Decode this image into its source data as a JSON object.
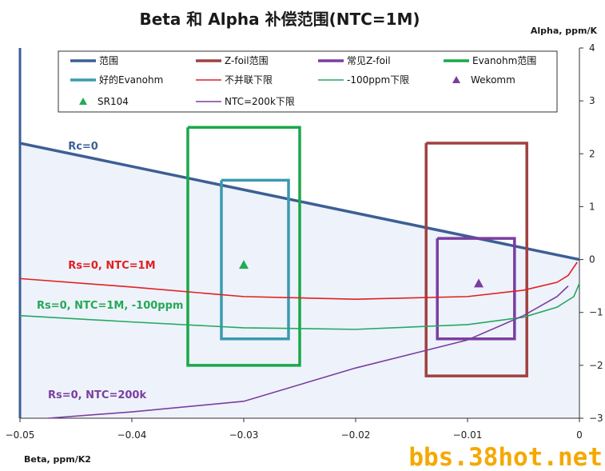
{
  "chart_data": {
    "type": "line",
    "title": "Beta 和 Alpha 补偿范围(NTC=1M)",
    "xlabel": "Beta, ppm/K2",
    "ylabel": "Alpha, ppm/K",
    "xlim": [
      -0.05,
      0
    ],
    "ylim": [
      -3,
      4
    ],
    "x_ticks": [
      "−0.05",
      "−0.04",
      "−0.03",
      "−0.02",
      "−0.01",
      "0"
    ],
    "y_ticks": [
      "4",
      "3",
      "2",
      "1",
      "0",
      "−1",
      "−2",
      "−3"
    ],
    "y_tick_values": [
      4,
      3,
      2,
      1,
      0,
      -1,
      -2,
      -3
    ],
    "x_tick_values": [
      -0.05,
      -0.04,
      -0.03,
      -0.02,
      -0.01,
      0
    ],
    "grid": false,
    "legend_position": "top",
    "series": [
      {
        "name": "范围",
        "kind": "line",
        "color": "#3c5f94",
        "width": 3.5,
        "points": [
          [
            -0.05,
            2.2
          ],
          [
            0,
            0
          ]
        ]
      },
      {
        "name": "Z-foil范围",
        "kind": "rect",
        "color": "#a04040",
        "width": 3.5,
        "points": [
          [
            -0.0137,
            2.2
          ],
          [
            -0.0047,
            2.2
          ],
          [
            -0.0047,
            -2.2
          ],
          [
            -0.0137,
            -2.2
          ],
          [
            -0.0137,
            2.2
          ]
        ]
      },
      {
        "name": "常见Z-foil",
        "kind": "rect",
        "color": "#7a3ea0",
        "width": 3.5,
        "points": [
          [
            -0.0127,
            0.4
          ],
          [
            -0.0058,
            0.4
          ],
          [
            -0.0058,
            -1.5
          ],
          [
            -0.0127,
            -1.5
          ],
          [
            -0.0127,
            0.4
          ]
        ]
      },
      {
        "name": "Evanohm范围",
        "kind": "rect",
        "color": "#1aa84a",
        "width": 3.5,
        "points": [
          [
            -0.035,
            2.5
          ],
          [
            -0.025,
            2.5
          ],
          [
            -0.025,
            -2.0
          ],
          [
            -0.035,
            -2.0
          ],
          [
            -0.035,
            2.5
          ]
        ]
      },
      {
        "name": "好的Evanohm",
        "kind": "rect",
        "color": "#3a9ab0",
        "width": 3.5,
        "points": [
          [
            -0.032,
            1.5
          ],
          [
            -0.026,
            1.5
          ],
          [
            -0.026,
            -1.5
          ],
          [
            -0.032,
            -1.5
          ],
          [
            -0.032,
            1.5
          ]
        ]
      },
      {
        "name": "不并联下限",
        "kind": "line",
        "color": "#e02020",
        "width": 1.6,
        "points": [
          [
            -0.05,
            -0.36
          ],
          [
            -0.04,
            -0.52
          ],
          [
            -0.03,
            -0.7
          ],
          [
            -0.02,
            -0.75
          ],
          [
            -0.01,
            -0.7
          ],
          [
            -0.005,
            -0.58
          ],
          [
            -0.002,
            -0.43
          ],
          [
            -0.001,
            -0.3
          ],
          [
            -0.0002,
            -0.05
          ]
        ]
      },
      {
        "name": "-100ppm下限",
        "kind": "line",
        "color": "#22aa60",
        "width": 1.6,
        "points": [
          [
            -0.05,
            -1.06
          ],
          [
            -0.04,
            -1.18
          ],
          [
            -0.03,
            -1.29
          ],
          [
            -0.02,
            -1.32
          ],
          [
            -0.01,
            -1.23
          ],
          [
            -0.005,
            -1.09
          ],
          [
            -0.002,
            -0.9
          ],
          [
            -0.0005,
            -0.7
          ],
          [
            0,
            -0.45
          ]
        ]
      },
      {
        "name": "NTC=200k下限",
        "kind": "line",
        "color": "#7a3ea0",
        "width": 1.6,
        "points": [
          [
            -0.0475,
            -3.0
          ],
          [
            -0.04,
            -2.88
          ],
          [
            -0.03,
            -2.68
          ],
          [
            -0.02,
            -2.05
          ],
          [
            -0.01,
            -1.52
          ],
          [
            -0.005,
            -1.06
          ],
          [
            -0.002,
            -0.7
          ],
          [
            -0.001,
            -0.5
          ]
        ]
      },
      {
        "name": "SR104",
        "kind": "marker",
        "color": "#22aa55",
        "points": [
          [
            -0.03,
            -0.1
          ]
        ]
      },
      {
        "name": "Wekomm",
        "kind": "marker",
        "color": "#7a3ea0",
        "points": [
          [
            -0.009,
            -0.45
          ]
        ]
      }
    ],
    "annotations": [
      {
        "text": "Rc=0",
        "x": -0.0457,
        "y": 2.08,
        "color": "#3c5f94"
      },
      {
        "text": "Rs=0, NTC=1M",
        "x": -0.0457,
        "y": -0.17,
        "color": "#e02020"
      },
      {
        "text": "Rs=0, NTC=1M, -100ppm",
        "x": -0.0485,
        "y": -0.93,
        "color": "#22aa55"
      },
      {
        "text": "Rs=0, NTC=200k",
        "x": -0.0475,
        "y": -2.62,
        "color": "#7a3ea0"
      }
    ],
    "shaded_region": {
      "color": "#eef2fb",
      "points": [
        [
          -0.05,
          2.2
        ],
        [
          0,
          0
        ],
        [
          0,
          -3
        ],
        [
          -0.05,
          -3
        ]
      ]
    }
  },
  "legend": {
    "entries": [
      {
        "label": "范围",
        "swatch": "line",
        "color": "#3c5f94"
      },
      {
        "label": "Z-foil范围",
        "swatch": "line",
        "color": "#a04040"
      },
      {
        "label": "常见Z-foil",
        "swatch": "line",
        "color": "#7a3ea0"
      },
      {
        "label": "Evanohm范围",
        "swatch": "line",
        "color": "#1aa84a"
      },
      {
        "label": "好的Evanohm",
        "swatch": "line",
        "color": "#3a9ab0"
      },
      {
        "label": "不并联下限",
        "swatch": "thin",
        "color": "#e02020"
      },
      {
        "label": "-100ppm下限",
        "swatch": "thin",
        "color": "#22aa60"
      },
      {
        "label": "Wekomm",
        "swatch": "marker",
        "color": "#7a3ea0"
      },
      {
        "label": "SR104",
        "swatch": "marker",
        "color": "#22aa55"
      },
      {
        "label": "NTC=200k下限",
        "swatch": "thin",
        "color": "#7a3ea0"
      }
    ]
  },
  "watermark": "bbs.38hot.net"
}
